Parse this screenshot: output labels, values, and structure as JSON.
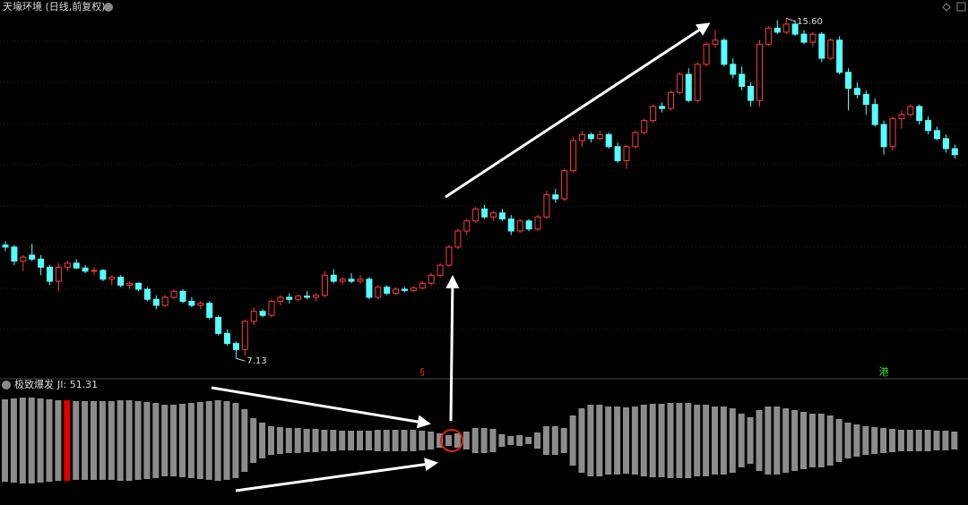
{
  "chart_data": [
    {
      "type": "candlestick",
      "title": "天壕环境 (日线,前复权)",
      "up_color": "#ff3c3c",
      "down_color": "#54ffff",
      "ylim": [
        6.6,
        16.05
      ],
      "open": [
        9.95,
        9.9,
        9.55,
        9.7,
        9.6,
        9.4,
        9.05,
        9.4,
        9.5,
        9.38,
        9.3,
        9.32,
        9.1,
        9.15,
        8.95,
        9.0,
        8.85,
        8.6,
        8.45,
        8.65,
        8.8,
        8.55,
        8.45,
        8.5,
        8.15,
        7.75,
        7.5,
        7.35,
        8.05,
        8.3,
        8.2,
        8.55,
        8.65,
        8.6,
        8.68,
        8.65,
        8.7,
        9.2,
        9.05,
        9.1,
        9.05,
        9.1,
        8.65,
        8.9,
        8.75,
        8.85,
        8.82,
        8.88,
        9.0,
        9.2,
        9.45,
        9.9,
        10.3,
        10.55,
        10.85,
        10.65,
        10.75,
        10.6,
        10.3,
        10.55,
        10.35,
        10.65,
        11.2,
        11.1,
        11.8,
        12.55,
        12.7,
        12.6,
        12.7,
        12.4,
        12.05,
        12.4,
        12.75,
        13.05,
        13.4,
        13.35,
        13.75,
        14.2,
        13.55,
        14.45,
        14.95,
        15.05,
        14.45,
        14.2,
        13.9,
        13.55,
        14.95,
        15.35,
        15.25,
        15.45,
        15.2,
        15.0,
        15.2,
        14.6,
        15.05,
        14.25,
        13.85,
        13.7,
        13.45,
        12.95,
        12.4,
        13.1,
        13.2,
        13.4,
        13.05,
        12.8,
        12.6,
        12.35
      ],
      "high": [
        10.05,
        9.95,
        9.7,
        9.98,
        9.7,
        9.45,
        9.5,
        9.55,
        9.6,
        9.45,
        9.4,
        9.35,
        9.2,
        9.2,
        9.05,
        9.02,
        8.9,
        8.7,
        8.7,
        8.85,
        8.85,
        8.65,
        8.55,
        8.55,
        8.2,
        7.85,
        7.55,
        8.1,
        8.4,
        8.35,
        8.6,
        8.7,
        8.75,
        8.72,
        8.8,
        8.75,
        9.3,
        9.35,
        9.15,
        9.25,
        9.2,
        9.15,
        8.95,
        8.95,
        8.9,
        8.9,
        8.92,
        9.05,
        9.25,
        9.5,
        9.95,
        10.35,
        10.6,
        10.9,
        10.95,
        10.8,
        10.85,
        10.7,
        10.6,
        10.6,
        10.7,
        11.3,
        11.35,
        11.85,
        12.65,
        12.8,
        12.75,
        12.8,
        12.75,
        12.5,
        12.45,
        12.8,
        13.1,
        13.45,
        13.5,
        13.8,
        14.25,
        14.35,
        14.5,
        15.0,
        15.3,
        15.1,
        14.6,
        14.4,
        14.0,
        15.05,
        15.4,
        15.55,
        15.6,
        15.55,
        15.3,
        15.25,
        15.25,
        15.1,
        15.15,
        14.35,
        14.0,
        13.8,
        13.6,
        13.05,
        13.15,
        13.3,
        13.45,
        13.45,
        13.15,
        12.9,
        12.7,
        12.45
      ],
      "low": [
        9.8,
        9.45,
        9.3,
        9.55,
        9.2,
        8.95,
        8.8,
        9.3,
        9.35,
        9.25,
        9.2,
        9.05,
        8.95,
        8.9,
        8.85,
        8.8,
        8.55,
        8.35,
        8.4,
        8.6,
        8.5,
        8.4,
        8.35,
        8.1,
        7.7,
        7.45,
        7.13,
        7.2,
        7.95,
        8.15,
        8.15,
        8.45,
        8.5,
        8.55,
        8.6,
        8.55,
        8.65,
        9.0,
        8.98,
        9.0,
        8.98,
        8.6,
        8.6,
        8.7,
        8.7,
        8.78,
        8.78,
        8.85,
        8.95,
        9.15,
        9.4,
        9.85,
        10.2,
        10.5,
        10.6,
        10.55,
        10.55,
        10.2,
        10.25,
        10.3,
        10.3,
        10.6,
        11.0,
        11.05,
        11.75,
        12.4,
        12.5,
        12.55,
        12.35,
        12.0,
        11.85,
        12.35,
        12.7,
        13.0,
        13.25,
        13.3,
        13.7,
        13.5,
        13.5,
        14.4,
        14.85,
        14.4,
        14.1,
        13.8,
        13.4,
        13.4,
        14.9,
        15.2,
        15.2,
        15.15,
        14.95,
        14.9,
        14.5,
        14.55,
        14.2,
        13.3,
        13.6,
        13.2,
        12.9,
        12.2,
        12.3,
        12.85,
        13.15,
        12.95,
        12.7,
        12.55,
        12.25,
        12.1
      ],
      "close": [
        9.9,
        9.55,
        9.65,
        9.6,
        9.4,
        9.05,
        9.4,
        9.5,
        9.38,
        9.3,
        9.32,
        9.1,
        9.15,
        8.95,
        9.0,
        8.85,
        8.6,
        8.45,
        8.65,
        8.8,
        8.55,
        8.45,
        8.5,
        8.15,
        7.75,
        7.5,
        7.35,
        8.05,
        8.3,
        8.2,
        8.55,
        8.65,
        8.6,
        8.68,
        8.65,
        8.7,
        9.2,
        9.05,
        9.1,
        9.05,
        9.1,
        8.65,
        8.9,
        8.75,
        8.85,
        8.82,
        8.88,
        9.0,
        9.2,
        9.45,
        9.9,
        10.3,
        10.55,
        10.85,
        10.65,
        10.75,
        10.6,
        10.3,
        10.55,
        10.35,
        10.65,
        11.2,
        11.1,
        11.8,
        12.55,
        12.7,
        12.6,
        12.7,
        12.4,
        12.05,
        12.4,
        12.75,
        13.05,
        13.4,
        13.35,
        13.75,
        14.2,
        13.55,
        14.45,
        14.95,
        15.05,
        14.45,
        14.2,
        13.9,
        13.55,
        14.95,
        15.35,
        15.25,
        15.45,
        15.2,
        15.0,
        15.2,
        14.6,
        15.05,
        14.25,
        13.85,
        13.7,
        13.45,
        12.95,
        12.4,
        13.1,
        13.2,
        13.4,
        13.05,
        12.8,
        12.6,
        12.35,
        12.2
      ],
      "annotations": [
        {
          "label": "15.60",
          "value": 15.6,
          "index": 88
        },
        {
          "label": "7.13",
          "value": 7.13,
          "index": 26
        }
      ],
      "markers": [
        {
          "label": "§",
          "index": 47,
          "color": "#e02020"
        },
        {
          "label": "港",
          "index": 99,
          "color": "#30e030"
        }
      ]
    },
    {
      "type": "bar",
      "title": "极致爆发",
      "readout": "JI: 51.31",
      "color": "#8c8c8c",
      "highlight_index": 7,
      "highlight_color": "#e00000",
      "ylim": [
        -50,
        50
      ],
      "values": [
        46,
        47,
        48,
        48,
        47,
        46,
        45,
        45,
        44,
        44,
        44,
        44,
        44,
        45,
        45,
        44,
        43,
        42,
        40,
        40,
        41,
        42,
        43,
        44,
        45,
        44,
        42,
        35,
        25,
        20,
        16,
        15,
        14,
        14,
        13,
        13,
        12,
        12,
        11,
        11,
        11,
        11,
        12,
        12,
        12,
        12,
        12,
        11,
        10,
        8,
        6,
        8,
        10,
        14,
        14,
        13,
        7,
        5,
        6,
        4,
        9,
        16,
        16,
        14,
        28,
        36,
        40,
        40,
        38,
        38,
        37,
        38,
        40,
        41,
        41,
        42,
        42,
        42,
        40,
        40,
        38,
        38,
        36,
        30,
        26,
        34,
        38,
        38,
        36,
        34,
        32,
        30,
        30,
        28,
        24,
        20,
        18,
        16,
        15,
        14,
        13,
        12,
        12,
        12,
        12,
        11,
        11,
        10
      ]
    }
  ]
}
